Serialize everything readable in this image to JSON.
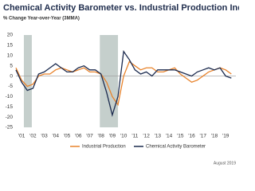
{
  "chart_data": {
    "type": "line",
    "title": "Chemical Activity Barometer vs. Industrial Production Index",
    "subtitle": "% Change Year-over-Year (3MMA)",
    "footnote": "August 2019",
    "x": [
      2000.5,
      2001,
      2001.5,
      2002,
      2002.5,
      2003,
      2003.5,
      2004,
      2004.5,
      2005,
      2005.5,
      2006,
      2006.5,
      2007,
      2007.5,
      2008,
      2008.5,
      2009,
      2009.5,
      2010,
      2010.5,
      2011,
      2011.5,
      2012,
      2012.5,
      2013,
      2013.5,
      2014,
      2014.5,
      2015,
      2015.5,
      2016,
      2016.5,
      2017,
      2017.5,
      2018,
      2018.5,
      2019,
      2019.5
    ],
    "series": [
      {
        "name": "Industrial Production",
        "color": "#e8822a",
        "values": [
          4,
          -2,
          -5,
          -4,
          0,
          1,
          1,
          3,
          4,
          3,
          2,
          3,
          4,
          2,
          2,
          1,
          -3,
          -10,
          -14,
          0,
          7,
          5,
          3,
          4,
          4,
          2,
          2,
          3,
          4,
          1,
          -1,
          -3,
          -2,
          0,
          2,
          3,
          4,
          3,
          1
        ]
      },
      {
        "name": "Chemical Activity Barometer",
        "color": "#1b2a4e",
        "values": [
          3,
          -3,
          -7,
          -6,
          1,
          2,
          4,
          6,
          4,
          2,
          2,
          4,
          5,
          3,
          3,
          1,
          -8,
          -19,
          -10,
          12,
          8,
          3,
          1,
          2,
          0,
          3,
          3,
          3,
          3,
          2,
          1,
          0,
          2,
          3,
          4,
          3,
          4,
          0,
          -1
        ]
      }
    ],
    "shaded_periods": [
      [
        2001.2,
        2001.9
      ],
      [
        2007.9,
        2009.5
      ]
    ],
    "shade_color": "#c5cfcc",
    "xlim": [
      2000.5,
      2019.9
    ],
    "xticks": [
      {
        "value": 2001,
        "label": "'01"
      },
      {
        "value": 2002,
        "label": "'02"
      },
      {
        "value": 2003,
        "label": "'03"
      },
      {
        "value": 2004,
        "label": "'04"
      },
      {
        "value": 2005,
        "label": "'05"
      },
      {
        "value": 2006,
        "label": "'06"
      },
      {
        "value": 2007,
        "label": "'07"
      },
      {
        "value": 2008,
        "label": "'08"
      },
      {
        "value": 2009,
        "label": "'09"
      },
      {
        "value": 2010,
        "label": "'10"
      },
      {
        "value": 2011,
        "label": "'11"
      },
      {
        "value": 2012,
        "label": "'12"
      },
      {
        "value": 2013,
        "label": "'13"
      },
      {
        "value": 2014,
        "label": "'14"
      },
      {
        "value": 2015,
        "label": "'15"
      },
      {
        "value": 2016,
        "label": "'16"
      },
      {
        "value": 2017,
        "label": "'17"
      },
      {
        "value": 2018,
        "label": "'18"
      },
      {
        "value": 2019,
        "label": "'19"
      }
    ],
    "ylim": [
      -25,
      20
    ],
    "yticks": [
      20,
      15,
      10,
      5,
      0,
      -5,
      -10,
      -15,
      -20,
      -25
    ],
    "grid": false,
    "legend": "bottom"
  }
}
